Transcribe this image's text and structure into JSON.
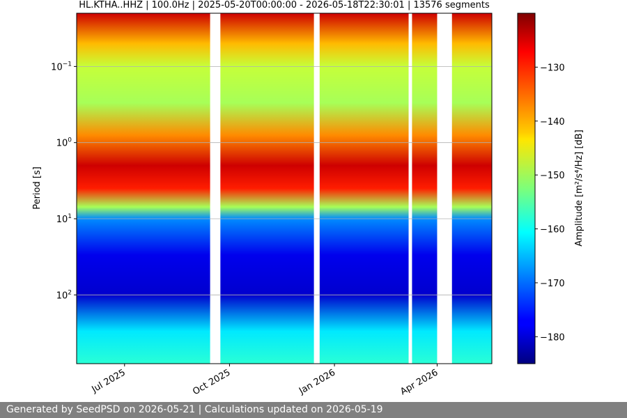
{
  "chart_data": {
    "type": "heatmap",
    "title": "HL.KTHA..HHZ | 100.0Hz | 2025-05-20T00:00:00 - 2026-05-18T22:30:01 | 13576 segments",
    "ylabel": "Period [s]",
    "colorbar_label": "Amplitude [m²/s⁴/Hz] [dB]",
    "x_range": [
      "2025-05-20",
      "2026-05-18"
    ],
    "y_scale": "log",
    "y_inverted": true,
    "y_range": [
      0.02,
      800
    ],
    "x_ticks": [
      {
        "date": "2025-07-01",
        "label": "Jul 2025"
      },
      {
        "date": "2025-10-01",
        "label": "Oct 2025"
      },
      {
        "date": "2026-01-01",
        "label": "Jan 2026"
      },
      {
        "date": "2026-04-01",
        "label": "Apr 2026"
      }
    ],
    "y_ticks": [
      {
        "value": 0.1,
        "base": "10",
        "exp": "−1"
      },
      {
        "value": 1,
        "base": "10",
        "exp": "0"
      },
      {
        "value": 10,
        "base": "10",
        "exp": "1"
      },
      {
        "value": 100,
        "base": "10",
        "exp": "2"
      }
    ],
    "grid": true,
    "colorbar": {
      "cmap": "jet",
      "range_db": [
        -185,
        -120
      ],
      "ticks": [
        -130,
        -140,
        -150,
        -160,
        -170,
        -180
      ],
      "tick_labels": [
        "−130",
        "−140",
        "−150",
        "−160",
        "−170",
        "−180"
      ]
    },
    "data_gaps": [
      [
        "2025-09-14",
        "2025-09-23"
      ],
      [
        "2025-12-14",
        "2025-12-19"
      ],
      [
        "2026-03-07",
        "2026-03-10"
      ],
      [
        "2026-04-01",
        "2026-04-14"
      ]
    ],
    "amplitude_profile_db": [
      {
        "period": 0.02,
        "value": -125
      },
      {
        "period": 0.05,
        "value": -140
      },
      {
        "period": 0.1,
        "value": -148
      },
      {
        "period": 0.3,
        "value": -150
      },
      {
        "period": 0.8,
        "value": -137
      },
      {
        "period": 2,
        "value": -125
      },
      {
        "period": 4,
        "value": -130
      },
      {
        "period": 7,
        "value": -150
      },
      {
        "period": 10,
        "value": -168
      },
      {
        "period": 30,
        "value": -178
      },
      {
        "period": 100,
        "value": -180
      },
      {
        "period": 300,
        "value": -162
      },
      {
        "period": 800,
        "value": -158
      }
    ]
  },
  "footer": {
    "text": "Generated by SeedPSD on 2026-05-21 | Calculations updated on 2026-05-19"
  }
}
